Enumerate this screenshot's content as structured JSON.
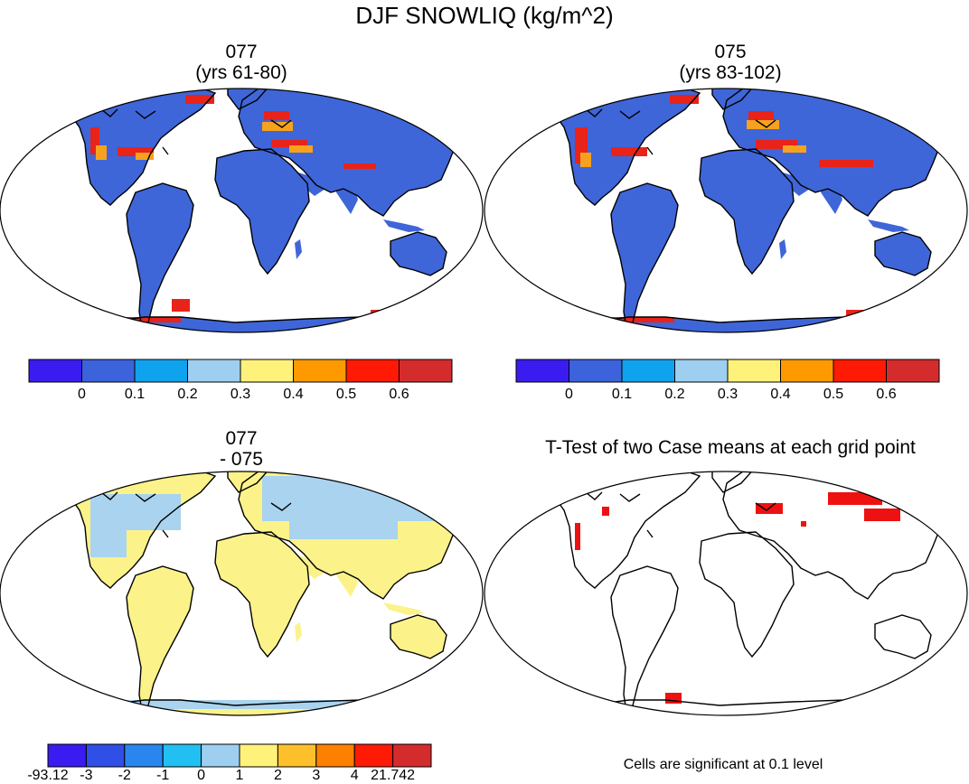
{
  "figure": {
    "title": "DJF SNOWLIQ (kg/m^2)",
    "footnote": "Cells are significant at 0.1 level"
  },
  "panels": {
    "case1": {
      "title": "077",
      "subtitle": "(yrs 61-80)"
    },
    "case2": {
      "title": "075",
      "subtitle": "(yrs 83-102)"
    },
    "diff": {
      "title": "077",
      "subtitle": "- 075"
    },
    "ttest": {
      "title": "T-Test of two Case means at each grid point"
    }
  },
  "colorbars": {
    "top": {
      "colors": [
        "#3a1cf0",
        "#3c62dc",
        "#0fa3ee",
        "#9ecff0",
        "#fef27a",
        "#fe9a00",
        "#fe1a05",
        "#d42c2c"
      ],
      "labels": [
        "0",
        "0.1",
        "0.2",
        "0.3",
        "0.4",
        "0.5",
        "0.6"
      ]
    },
    "diff": {
      "colors": [
        "#3a1cf0",
        "#2f4fe6",
        "#2a86ef",
        "#22bff3",
        "#9ecff0",
        "#fef27a",
        "#fec02a",
        "#fe8000",
        "#fe1a05",
        "#d42c2c"
      ],
      "labels": [
        "-93.12",
        "-3",
        "-2",
        "-1",
        "0",
        "1",
        "2",
        "3",
        "4",
        "21.742"
      ]
    }
  },
  "map_colors": {
    "land_top": "#3f66d8",
    "land_diff": "#fbf28a",
    "diff_high_lat": "#a9d3ee",
    "snow_high": "#e8231a",
    "snow_mid": "#f6a21e",
    "significant": "#ee1111"
  }
}
